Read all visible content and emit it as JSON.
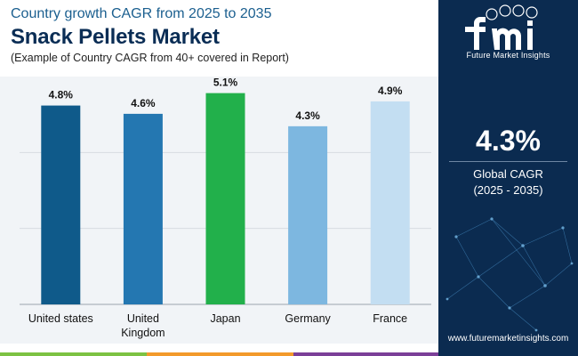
{
  "header": {
    "subtitle": "Country growth CAGR from 2025 to 2035",
    "title": "Snack Pellets Market",
    "note": "(Example of Country CAGR from 40+ covered in Report)"
  },
  "chart_data": {
    "type": "bar",
    "categories": [
      "United states",
      "United Kingdom",
      "Japan",
      "Germany",
      "France"
    ],
    "values": [
      4.8,
      4.6,
      5.1,
      4.3,
      4.9
    ],
    "value_labels": [
      "4.8%",
      "4.6%",
      "5.1%",
      "4.3%",
      "4.9%"
    ],
    "colors": [
      "#0f5a8a",
      "#2477b1",
      "#22b04b",
      "#7db7e0",
      "#c3def2"
    ],
    "ylim": [
      0,
      5.5
    ],
    "grid": true,
    "legend": "none"
  },
  "sidebar": {
    "brand_name": "Future Market Insights",
    "value": "4.3%",
    "label": "Global CAGR",
    "period": "(2025 - 2035)",
    "website": "www.futuremarketinsights.com"
  },
  "colors": {
    "sidebar_bg": "#0b2b50",
    "title": "#0a2d55",
    "subtitle": "#1b5f8f",
    "plot_bg": "#f1f4f7"
  }
}
